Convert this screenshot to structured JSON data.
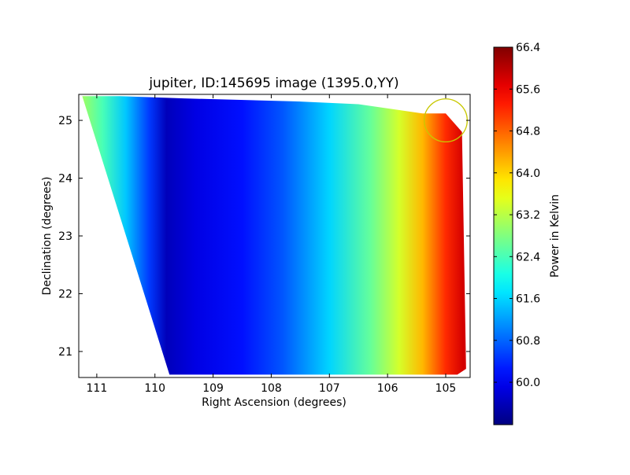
{
  "chart_data": {
    "type": "heatmap",
    "title": "jupiter, ID:145695 image (1395.0,YY)",
    "xlabel": "Right Ascension (degrees)",
    "ylabel": "Declination (degrees)",
    "xlim": [
      111.31,
      104.58
    ],
    "ylim": [
      20.55,
      25.45
    ],
    "xticks": [
      111,
      110,
      109,
      108,
      107,
      106,
      105
    ],
    "yticks": [
      21,
      22,
      23,
      24,
      25
    ],
    "colorbar": {
      "label": "Power in Kelvin",
      "range": [
        59.19,
        66.4
      ],
      "ticks": [
        "60.0",
        "60.8",
        "61.6",
        "62.4",
        "63.2",
        "64.0",
        "64.8",
        "65.6",
        "66.4"
      ],
      "colormap": "jet"
    },
    "coverage_outline": [
      [
        111.25,
        25.42
      ],
      [
        110.6,
        25.42
      ],
      [
        109.5,
        25.38
      ],
      [
        107.6,
        25.33
      ],
      [
        106.5,
        25.28
      ],
      [
        105.4,
        25.12
      ],
      [
        105.0,
        25.12
      ],
      [
        104.72,
        24.8
      ],
      [
        104.65,
        20.7
      ],
      [
        104.8,
        20.6
      ],
      [
        109.75,
        20.6
      ],
      [
        111.25,
        25.42
      ]
    ],
    "ra_profile": {
      "ra": [
        111.25,
        110.9,
        110.5,
        110.1,
        109.8,
        109.3,
        108.5,
        107.8,
        107.0,
        106.3,
        105.8,
        105.4,
        105.0,
        104.7
      ],
      "power": [
        63.0,
        62.4,
        61.5,
        60.5,
        59.6,
        59.9,
        60.2,
        60.7,
        61.6,
        62.6,
        63.4,
        64.2,
        65.2,
        65.8
      ]
    },
    "marker_circle": {
      "ra": 105.0,
      "dec": 25.0,
      "radius_deg": 0.37,
      "color": "#c8c800"
    }
  }
}
